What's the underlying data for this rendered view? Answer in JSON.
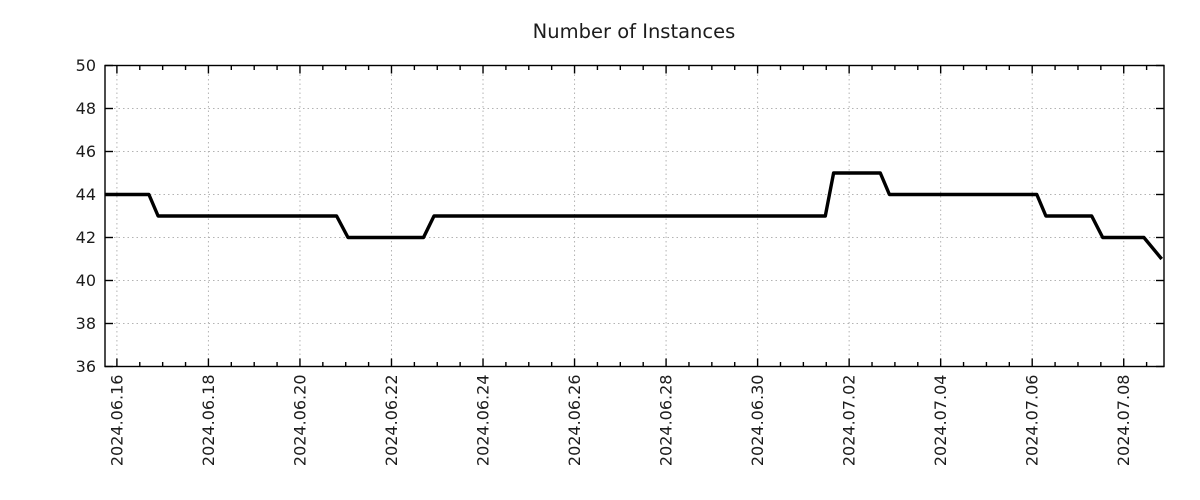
{
  "page": {
    "background": "#ffffff"
  },
  "chart_data": {
    "type": "line",
    "line_style": "step-with-short-ramps",
    "title": "Number of Instances",
    "legend": "none",
    "grid": {
      "show": true,
      "color": "#b3b3b3",
      "style": "dotted"
    },
    "x_axis": {
      "label": "",
      "unit": "date",
      "days_epoch": "days since 2024-06-16 00:00",
      "range_days": [
        -0.26,
        22.88
      ],
      "major_tick_days": [
        0,
        2,
        4,
        6,
        8,
        10,
        12,
        14,
        16,
        18,
        20,
        22
      ],
      "tick_labels": [
        "2024.06.16",
        "2024.06.18",
        "2024.06.20",
        "2024.06.22",
        "2024.06.24",
        "2024.06.26",
        "2024.06.28",
        "2024.06.30",
        "2024.07.02",
        "2024.07.04",
        "2024.07.06",
        "2024.07.08"
      ],
      "minor_tick_interval_days": 0.5,
      "tick_label_rotation_deg": -90
    },
    "y_axis": {
      "label": "",
      "range": [
        36,
        50
      ],
      "ticks": [
        36,
        38,
        40,
        42,
        44,
        46,
        48,
        50
      ],
      "minor_ticks": "none"
    },
    "series": [
      {
        "name": "Number of Instances",
        "color": "#000000",
        "points_days_value": [
          [
            -0.26,
            44
          ],
          [
            0.7,
            44
          ],
          [
            0.9,
            43
          ],
          [
            4.8,
            43
          ],
          [
            5.05,
            42
          ],
          [
            6.7,
            42
          ],
          [
            6.93,
            43
          ],
          [
            15.48,
            43
          ],
          [
            15.66,
            45
          ],
          [
            16.68,
            45
          ],
          [
            16.88,
            44
          ],
          [
            20.1,
            44
          ],
          [
            20.3,
            43
          ],
          [
            21.3,
            43
          ],
          [
            21.54,
            42
          ],
          [
            22.44,
            42
          ],
          [
            22.83,
            41
          ]
        ],
        "plateau_summary": [
          {
            "value": 44,
            "from": "plot start (~2024.06.15 18h)",
            "to": "~2024.06.16 17h"
          },
          {
            "value": 43,
            "from": "~2024.06.16 22h",
            "to": "~2024.06.20 19h"
          },
          {
            "value": 42,
            "from": "~2024.06.21 01h",
            "to": "~2024.06.22 17h"
          },
          {
            "value": 43,
            "from": "~2024.06.22 22h",
            "to": "~2024.07.01 11h"
          },
          {
            "value": 45,
            "from": "~2024.07.01 16h",
            "to": "~2024.07.02 16h"
          },
          {
            "value": 44,
            "from": "~2024.07.02 21h",
            "to": "~2024.07.06 02h"
          },
          {
            "value": 43,
            "from": "~2024.07.06 07h",
            "to": "~2024.07.07 07h"
          },
          {
            "value": 42,
            "from": "~2024.07.07 13h",
            "to": "~2024.07.08 10h"
          },
          {
            "value": 41,
            "from": "~2024.07.08 20h (plot end)",
            "to": "plot end"
          }
        ]
      }
    ]
  },
  "colors": {
    "line": "#000000",
    "text": "#1c1c1c",
    "grid": "#b3b3b3",
    "frame": "#000000",
    "background": "#ffffff"
  }
}
